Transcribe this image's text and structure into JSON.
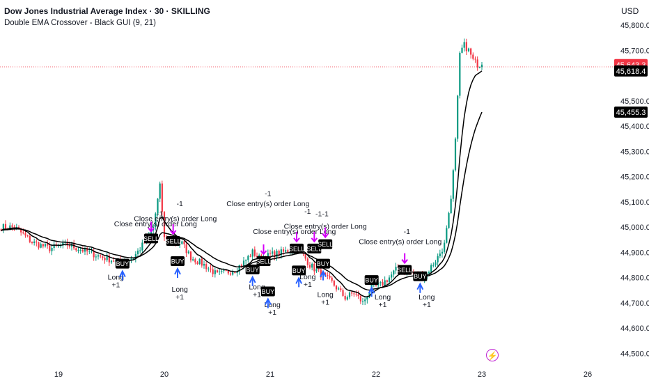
{
  "header": {
    "title": "Dow Jones Industrial Average Index · 30 · SKILLING",
    "indicator": "Double EMA Crossover - Black GUI (9, 21)",
    "currency": "USD"
  },
  "colors": {
    "up": "#089981",
    "down": "#f23645",
    "ema": "#000000",
    "signal_arrow": "#2962ff",
    "exit_arrow": "#d500f9",
    "price_tag": "#f23645"
  },
  "events_icon": "lightning-bolt-icon",
  "chart_data": {
    "type": "candlestick",
    "xlabel": "",
    "ylabel": "",
    "x_ticks": [
      {
        "label": "19",
        "t": 0
      },
      {
        "label": "20",
        "t": 48
      },
      {
        "label": "21",
        "t": 96
      },
      {
        "label": "22",
        "t": 144
      },
      {
        "label": "23",
        "t": 192
      },
      {
        "label": "26",
        "t": 240
      }
    ],
    "y_ticks": [
      {
        "label": "45,800.0",
        "v": 45800
      },
      {
        "label": "45,700.0",
        "v": 45700
      },
      {
        "label": "45,500.0",
        "v": 45500
      },
      {
        "label": "45,400.0",
        "v": 45400
      },
      {
        "label": "45,300.0",
        "v": 45300
      },
      {
        "label": "45,200.0",
        "v": 45200
      },
      {
        "label": "45,100.0",
        "v": 45100
      },
      {
        "label": "45,000.0",
        "v": 45000
      },
      {
        "label": "44,900.0",
        "v": 44900
      },
      {
        "label": "44,800.0",
        "v": 44800
      },
      {
        "label": "44,700.0",
        "v": 44700
      },
      {
        "label": "44,600.0",
        "v": 44600
      },
      {
        "label": "44,500.0",
        "v": 44500
      }
    ],
    "ylim": [
      44465,
      45840
    ],
    "price_labels": [
      {
        "label": "45,643.3",
        "v": 45643.3,
        "style": "last"
      },
      {
        "label": "45,618.4",
        "v": 45618.4,
        "style": "ema"
      },
      {
        "label": "45,455.3",
        "v": 45455.3,
        "style": "ema"
      }
    ],
    "anchors": [
      [
        -20,
        45000
      ],
      [
        -12,
        44940
      ],
      [
        -4,
        44915
      ],
      [
        4,
        44930
      ],
      [
        12,
        44905
      ],
      [
        20,
        44880
      ],
      [
        28,
        44860
      ],
      [
        34,
        44880
      ],
      [
        40,
        44950
      ],
      [
        43,
        45000
      ],
      [
        46,
        45160
      ],
      [
        48,
        44960
      ],
      [
        52,
        44940
      ],
      [
        56,
        44935
      ],
      [
        60,
        44880
      ],
      [
        66,
        44850
      ],
      [
        72,
        44810
      ],
      [
        80,
        44830
      ],
      [
        84,
        44860
      ],
      [
        88,
        44900
      ],
      [
        92,
        44870
      ],
      [
        96,
        44890
      ],
      [
        102,
        44900
      ],
      [
        108,
        44920
      ],
      [
        110,
        44900
      ],
      [
        114,
        44850
      ],
      [
        118,
        44820
      ],
      [
        124,
        44780
      ],
      [
        130,
        44720
      ],
      [
        134,
        44740
      ],
      [
        138,
        44700
      ],
      [
        142,
        44760
      ],
      [
        146,
        44770
      ],
      [
        150,
        44800
      ],
      [
        154,
        44840
      ],
      [
        158,
        44830
      ],
      [
        162,
        44810
      ],
      [
        166,
        44800
      ],
      [
        168,
        44830
      ],
      [
        172,
        44880
      ],
      [
        175,
        44930
      ],
      [
        178,
        45100
      ],
      [
        180,
        45350
      ],
      [
        182,
        45690
      ],
      [
        184,
        45720
      ],
      [
        186,
        45700
      ],
      [
        188,
        45660
      ],
      [
        190,
        45645
      ],
      [
        192,
        45643
      ]
    ],
    "ema_fast_last": 45618.4,
    "ema_slow_last": 45455.3,
    "trade_labels": [
      {
        "text": "Long",
        "t": 26,
        "v": 44792
      },
      {
        "text": "+1",
        "t": 26,
        "v": 44762
      },
      {
        "text": "Close entry(s) order Long",
        "t": 44,
        "v": 45003
      },
      {
        "text": "-1",
        "t": 46,
        "v": 45043
      },
      {
        "text": "Close entry(s) order Long",
        "t": 53,
        "v": 45023
      },
      {
        "text": "-1",
        "t": 55,
        "v": 45083
      },
      {
        "text": "Long",
        "t": 55,
        "v": 44743
      },
      {
        "text": "+1",
        "t": 55,
        "v": 44713
      },
      {
        "text": "Close entry(s) order Long",
        "t": 95,
        "v": 45083
      },
      {
        "text": "-1",
        "t": 95,
        "v": 45123
      },
      {
        "text": "Long",
        "t": 90,
        "v": 44753
      },
      {
        "text": "+1",
        "t": 90,
        "v": 44723
      },
      {
        "text": "Long",
        "t": 97,
        "v": 44683
      },
      {
        "text": "+1",
        "t": 97,
        "v": 44653
      },
      {
        "text": "Close entry(s) order Long",
        "t": 107,
        "v": 44973
      },
      {
        "text": "Close entry(s) order Long",
        "t": 121,
        "v": 44993
      },
      {
        "text": "-1",
        "t": 113,
        "v": 45053
      },
      {
        "text": "-1",
        "t": 118,
        "v": 45043
      },
      {
        "text": "-1",
        "t": 121,
        "v": 45043
      },
      {
        "text": "Long",
        "t": 113,
        "v": 44793
      },
      {
        "text": "+1",
        "t": 113,
        "v": 44763
      },
      {
        "text": "Long",
        "t": 121,
        "v": 44723
      },
      {
        "text": "+1",
        "t": 121,
        "v": 44693
      },
      {
        "text": "Close entry(s) order Long",
        "t": 155,
        "v": 44933
      },
      {
        "text": "-1",
        "t": 158,
        "v": 44973
      },
      {
        "text": "Long",
        "t": 147,
        "v": 44713
      },
      {
        "text": "+1",
        "t": 147,
        "v": 44683
      },
      {
        "text": "Long",
        "t": 167,
        "v": 44713
      },
      {
        "text": "+1",
        "t": 167,
        "v": 44683
      }
    ],
    "signal_boxes": [
      {
        "text": "BUY",
        "t": 29,
        "v": 44855
      },
      {
        "text": "SELL",
        "t": 42,
        "v": 44955
      },
      {
        "text": "SELL",
        "t": 52,
        "v": 44945
      },
      {
        "text": "BUY",
        "t": 54,
        "v": 44865
      },
      {
        "text": "BUY",
        "t": 88,
        "v": 44832
      },
      {
        "text": "SELL",
        "t": 93,
        "v": 44865
      },
      {
        "text": "BUY",
        "t": 95,
        "v": 44745
      },
      {
        "text": "SELL",
        "t": 108,
        "v": 44915
      },
      {
        "text": "BUY",
        "t": 109,
        "v": 44828
      },
      {
        "text": "SELL",
        "t": 116,
        "v": 44915
      },
      {
        "text": "SELL",
        "t": 121,
        "v": 44932
      },
      {
        "text": "BUY",
        "t": 120,
        "v": 44855
      },
      {
        "text": "BUY",
        "t": 142,
        "v": 44790
      },
      {
        "text": "SELL",
        "t": 157,
        "v": 44830
      },
      {
        "text": "BUY",
        "t": 164,
        "v": 44805
      }
    ]
  }
}
